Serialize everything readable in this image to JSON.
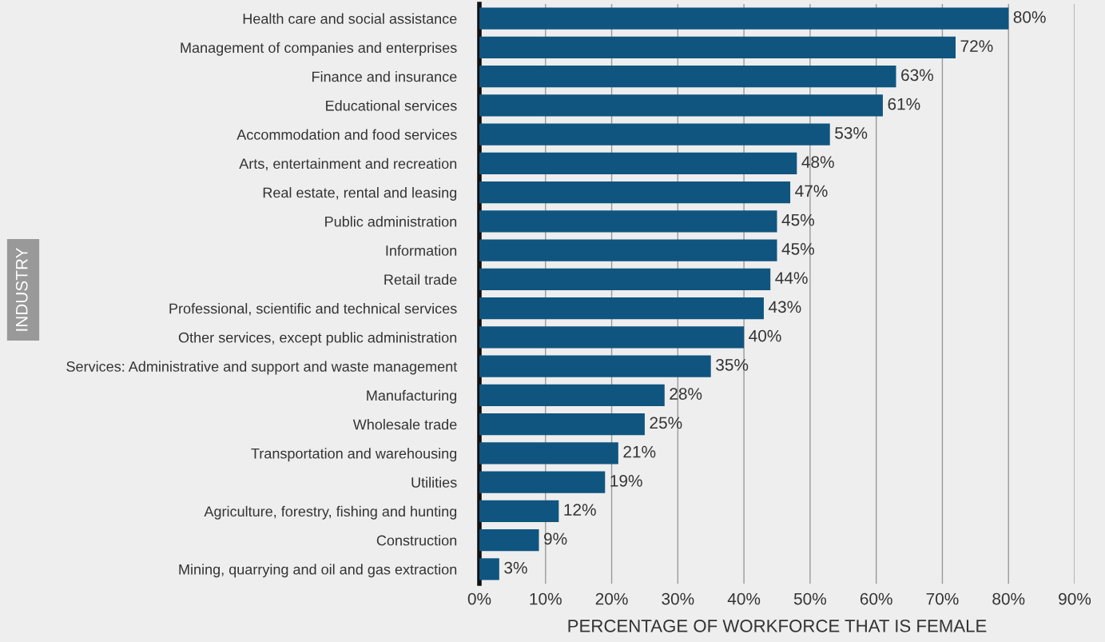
{
  "chart_data": {
    "type": "bar",
    "orientation": "horizontal",
    "xlabel": "PERCENTAGE OF WORKFORCE THAT IS FEMALE",
    "ylabel": "INDUSTRY",
    "categories": [
      "Health care and social assistance",
      "Management of companies and enterprises",
      "Finance and insurance",
      "Educational services",
      "Accommodation and food services",
      "Arts, entertainment and recreation",
      "Real estate, rental and leasing",
      "Public administration",
      "Information",
      "Retail trade",
      "Professional, scientific and technical services",
      "Other services, except public administration",
      "Services: Administrative and support and waste management",
      "Manufacturing",
      "Wholesale trade",
      "Transportation and warehousing",
      "Utilities",
      "Agriculture, forestry, fishing and hunting",
      "Construction",
      "Mining, quarrying and oil and gas extraction"
    ],
    "values": [
      80,
      72,
      63,
      61,
      53,
      48,
      47,
      45,
      45,
      44,
      43,
      40,
      35,
      28,
      25,
      21,
      19,
      12,
      9,
      3
    ],
    "value_labels": [
      "80%",
      "72%",
      "63%",
      "61%",
      "53%",
      "48%",
      "47%",
      "45%",
      "45%",
      "44%",
      "43%",
      "40%",
      "35%",
      "28%",
      "25%",
      "21%",
      "19%",
      "12%",
      "9%",
      "3%"
    ],
    "color": "#0f5580",
    "xlim": [
      0,
      90
    ],
    "xticks": [
      {
        "value": 0,
        "label": "0%"
      },
      {
        "value": 10,
        "label": "10%"
      },
      {
        "value": 20,
        "label": "20%"
      },
      {
        "value": 30,
        "label": "30%"
      },
      {
        "value": 40,
        "label": "40%"
      },
      {
        "value": 50,
        "label": "50%"
      },
      {
        "value": 60,
        "label": "60%"
      },
      {
        "value": 70,
        "label": "70%"
      },
      {
        "value": 80,
        "label": "80%"
      },
      {
        "value": 90,
        "label": "90%"
      }
    ],
    "grid": "x",
    "legend": false
  }
}
